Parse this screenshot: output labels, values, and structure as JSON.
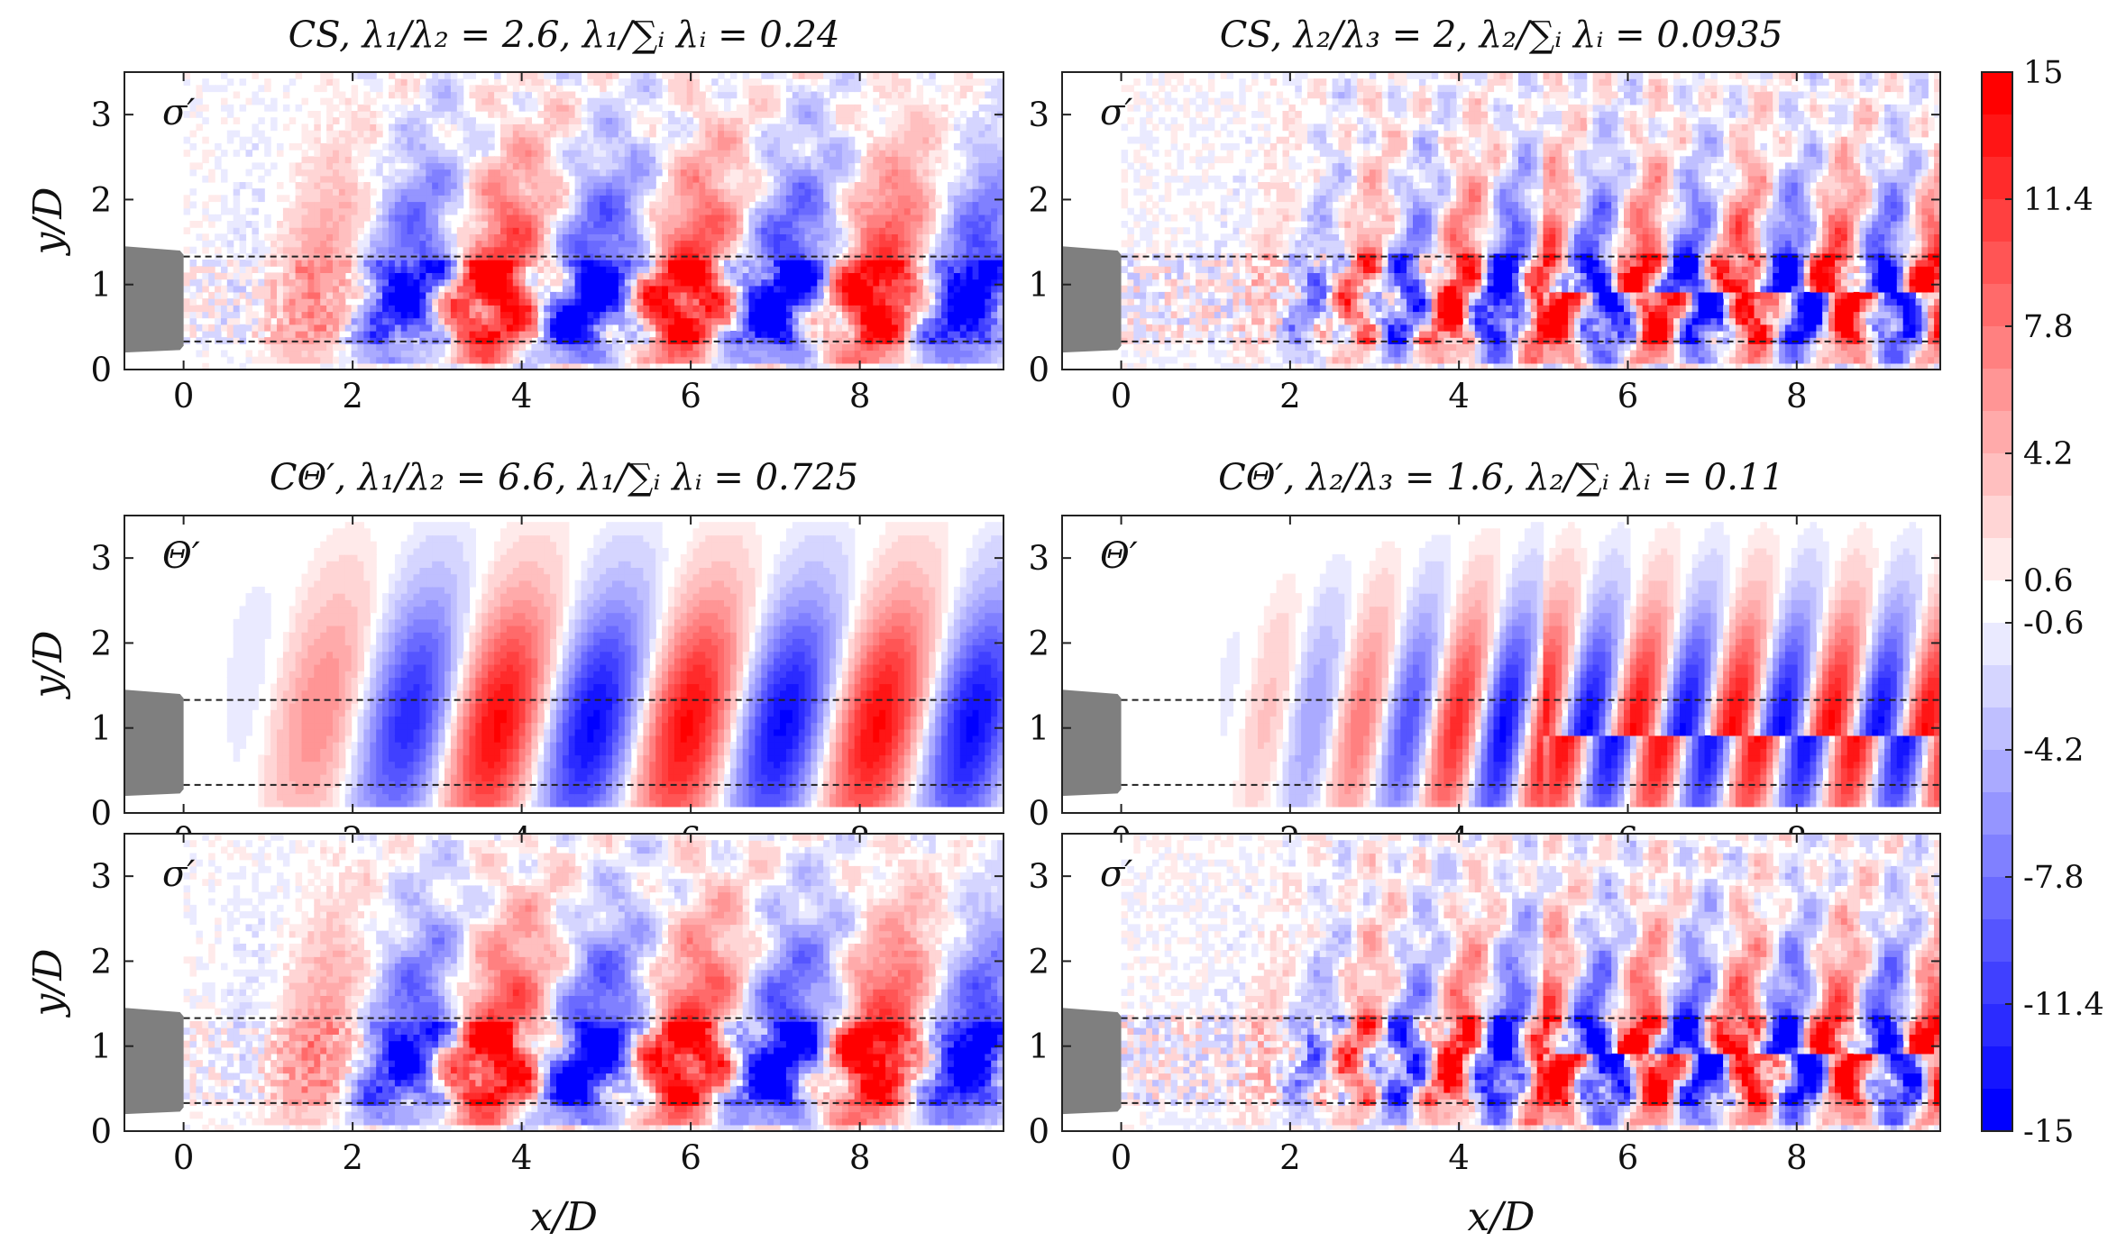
{
  "chart_data": {
    "type": "heatmap",
    "description_units": "non-dimensional",
    "xlim": [
      -0.7,
      9.7
    ],
    "ylim": [
      0,
      3.5
    ],
    "xticks": [
      0,
      2,
      4,
      6,
      8
    ],
    "yticks": [
      0,
      1,
      2,
      3
    ],
    "xlabel": "x/D",
    "ylabel": "y/D",
    "shear_layer_lines_y": [
      0.33,
      1.33
    ],
    "nozzle": {
      "x_min": -0.7,
      "x_max": 0,
      "y_min": 0.2,
      "y_max": 1.45
    },
    "colorbar": {
      "min": -15,
      "max": 15,
      "tick_labels": [
        "15",
        "11.4",
        "7.8",
        "4.2",
        "0.6",
        "-0.6",
        "-4.2",
        "-7.8",
        "-11.4",
        "-15"
      ],
      "tick_values": [
        15,
        11.4,
        7.8,
        4.2,
        0.6,
        -0.6,
        -4.2,
        -7.8,
        -11.4,
        -15
      ],
      "levels": 25,
      "low_color": "#0000ff",
      "high_color": "#ff0000",
      "mid_color": "#ffffff"
    },
    "panels": [
      {
        "id": "a",
        "title": "CS, λ₁/λ₂ = 2.6, λ₁/∑ᵢ λᵢ = 0.24",
        "field_label": "σ′",
        "field": "sigma",
        "mode": "first",
        "show_ylabel": true,
        "show_xlabel": false
      },
      {
        "id": "b",
        "title": "CS, λ₂/λ₃ = 2, λ₂/∑ᵢ λᵢ = 0.0935",
        "field_label": "σ′",
        "field": "sigma",
        "mode": "second",
        "show_ylabel": false,
        "show_xlabel": false
      },
      {
        "id": "c",
        "title": "CΘ′, λ₁/λ₂ = 6.6, λ₁/∑ᵢ λᵢ = 0.725",
        "field_label": "Θ′",
        "field": "theta",
        "mode": "first",
        "show_ylabel": true,
        "show_xlabel": false
      },
      {
        "id": "d",
        "title": "CΘ′, λ₂/λ₃ = 1.6, λ₂/∑ᵢ λᵢ = 0.11",
        "field_label": "Θ′",
        "field": "theta",
        "mode": "second",
        "show_ylabel": false,
        "show_xlabel": false
      },
      {
        "id": "e",
        "title": "",
        "field_label": "σ′",
        "field": "sigma",
        "mode": "first",
        "show_ylabel": true,
        "show_xlabel": true
      },
      {
        "id": "f",
        "title": "",
        "field_label": "σ′",
        "field": "sigma",
        "mode": "second",
        "show_ylabel": false,
        "show_xlabel": true
      }
    ]
  }
}
